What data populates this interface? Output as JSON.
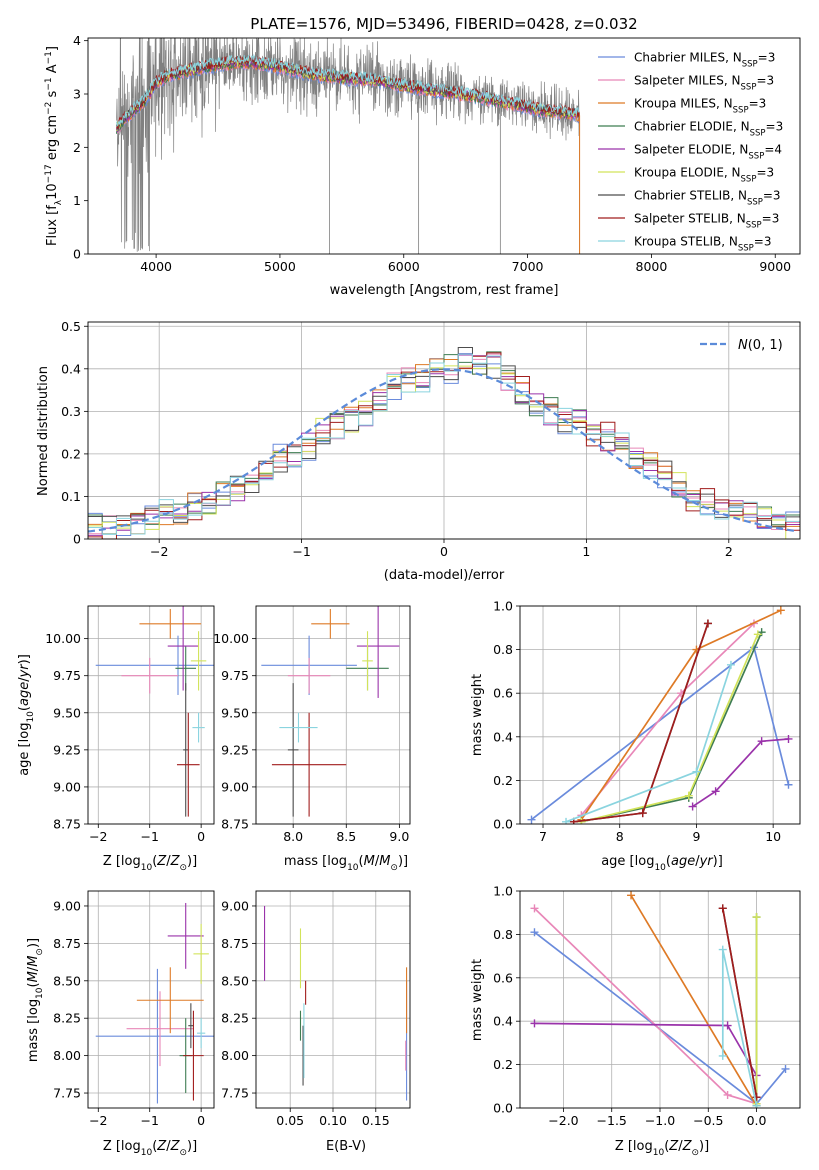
{
  "title": "PLATE=1576, MJD=53496, FIBERID=0428, z=0.032",
  "colors": {
    "spectrum": "#808080",
    "grid": "#b0b0b0",
    "normal_curve": "#5b8bd9"
  },
  "legend": [
    {
      "name": "Chabrier MILES",
      "nssp": "3",
      "color": "#6a8bdc"
    },
    {
      "name": "Salpeter MILES",
      "nssp": "3",
      "color": "#e887b8"
    },
    {
      "name": "Kroupa MILES",
      "nssp": "3",
      "color": "#de7a26"
    },
    {
      "name": "Chabrier ELODIE",
      "nssp": "3",
      "color": "#3f7d52"
    },
    {
      "name": "Salpeter ELODIE",
      "nssp": "4",
      "color": "#9a33aa"
    },
    {
      "name": "Kroupa ELODIE",
      "nssp": "3",
      "color": "#d2e35a"
    },
    {
      "name": "Chabrier STELIB",
      "nssp": "3",
      "color": "#4d4d4d"
    },
    {
      "name": "Salpeter STELIB",
      "nssp": "3",
      "color": "#a11d1d"
    },
    {
      "name": "Kroupa STELIB",
      "nssp": "3",
      "color": "#8ad4df"
    }
  ],
  "chart_data": [
    {
      "id": "spectrum",
      "type": "line",
      "xlabel": "wavelength [Angstrom, rest frame]",
      "ylabel": "Flux [f_λ10^-17 erg cm^-2 s^-1 A^-1]",
      "xlim": [
        3450,
        9200
      ],
      "ylim": [
        0,
        4.05
      ],
      "xticks": [
        4000,
        5000,
        6000,
        7000,
        8000,
        9000
      ],
      "yticks": [
        0,
        1,
        2,
        3,
        4
      ],
      "grid": false,
      "legend_position": "top-right",
      "data_range": [
        3680,
        7420
      ],
      "continuum": {
        "x": [
          3680,
          3750,
          3900,
          4000,
          4100,
          4300,
          4500,
          4700,
          4900,
          5100,
          5300,
          5500,
          5800,
          6000,
          6300,
          6600,
          6900,
          7100,
          7300,
          7420
        ],
        "y": [
          2.35,
          2.55,
          2.85,
          3.2,
          3.35,
          3.45,
          3.55,
          3.6,
          3.55,
          3.45,
          3.35,
          3.3,
          3.25,
          3.15,
          3.05,
          2.95,
          2.8,
          2.7,
          2.65,
          2.6
        ]
      }
    },
    {
      "id": "residuals",
      "type": "histogram",
      "xlabel": "(data-model)/error",
      "ylabel": "Normed distribution",
      "xlim": [
        -2.5,
        2.5
      ],
      "ylim": [
        0,
        0.51
      ],
      "xticks": [
        -2,
        -1,
        0,
        1,
        2
      ],
      "yticks": [
        0.0,
        0.1,
        0.2,
        0.3,
        0.4,
        0.5
      ],
      "grid": true,
      "legend_position": "top-right",
      "curve_label": "N(0,1)",
      "bins": {
        "start": -2.5,
        "width": 0.1
      },
      "template": [
        0.03,
        0.02,
        0.03,
        0.04,
        0.05,
        0.06,
        0.07,
        0.08,
        0.085,
        0.1,
        0.12,
        0.14,
        0.17,
        0.19,
        0.2,
        0.22,
        0.25,
        0.27,
        0.28,
        0.3,
        0.33,
        0.36,
        0.37,
        0.38,
        0.4,
        0.4,
        0.43,
        0.42,
        0.41,
        0.38,
        0.35,
        0.32,
        0.3,
        0.28,
        0.27,
        0.25,
        0.24,
        0.22,
        0.19,
        0.17,
        0.15,
        0.13,
        0.1,
        0.09,
        0.08,
        0.07,
        0.06,
        0.05,
        0.04,
        0.03
      ]
    },
    {
      "id": "age_vs_Z",
      "type": "scatter",
      "xlabel": "Z [log10(Z/Z⊙)]",
      "ylabel": "age  [log10(age/yr)]",
      "xlim": [
        -2.2,
        0.25
      ],
      "ylim": [
        8.75,
        10.22
      ],
      "xticks": [
        -2,
        -1,
        0
      ],
      "yticks": [
        8.75,
        9.0,
        9.25,
        9.5,
        9.75,
        10.0
      ],
      "grid": true,
      "points": [
        {
          "s": 0,
          "x": -0.45,
          "y": 9.82,
          "xe": 1.6,
          "ye": 0.2
        },
        {
          "s": 1,
          "x": -1.0,
          "y": 9.75,
          "xe": 0.55,
          "ye": 0.12
        },
        {
          "s": 2,
          "x": -0.6,
          "y": 10.1,
          "xe": 0.6,
          "ye": 0.1
        },
        {
          "s": 3,
          "x": -0.3,
          "y": 9.8,
          "xe": 0.2,
          "ye": 0.15
        },
        {
          "s": 4,
          "x": -0.35,
          "y": 9.95,
          "xe": 0.3,
          "ye": 0.3
        },
        {
          "s": 5,
          "x": -0.05,
          "y": 9.85,
          "xe": 0.15,
          "ye": 0.2
        },
        {
          "s": 6,
          "x": -0.3,
          "y": 9.25,
          "xe": 0.05,
          "ye": 0.45
        },
        {
          "s": 7,
          "x": -0.25,
          "y": 9.15,
          "xe": 0.22,
          "ye": 0.35
        },
        {
          "s": 8,
          "x": -0.05,
          "y": 9.4,
          "xe": 0.12,
          "ye": 0.1
        }
      ]
    },
    {
      "id": "age_vs_mass",
      "type": "scatter",
      "xlabel": "mass [log10(M/M⊙)]",
      "ylabel": "",
      "xlim": [
        7.65,
        9.1
      ],
      "ylim": [
        8.75,
        10.22
      ],
      "xticks": [
        8.0,
        8.5,
        9.0
      ],
      "yticks": [
        8.75,
        9.0,
        9.25,
        9.5,
        9.75,
        10.0
      ],
      "grid": true,
      "points": [
        {
          "s": 0,
          "x": 8.15,
          "y": 9.82,
          "xe": 0.45,
          "ye": 0.2
        },
        {
          "s": 1,
          "x": 8.15,
          "y": 9.75,
          "xe": 0.2,
          "ye": 0.12
        },
        {
          "s": 2,
          "x": 8.35,
          "y": 10.1,
          "xe": 0.18,
          "ye": 0.1
        },
        {
          "s": 3,
          "x": 8.7,
          "y": 9.8,
          "xe": 0.2,
          "ye": 0.15
        },
        {
          "s": 4,
          "x": 8.8,
          "y": 9.95,
          "xe": 0.2,
          "ye": 0.35
        },
        {
          "s": 5,
          "x": 8.7,
          "y": 9.85,
          "xe": 0.05,
          "ye": 0.2
        },
        {
          "s": 6,
          "x": 8.0,
          "y": 9.25,
          "xe": 0.05,
          "ye": 0.45
        },
        {
          "s": 7,
          "x": 8.15,
          "y": 9.15,
          "xe": 0.35,
          "ye": 0.35
        },
        {
          "s": 8,
          "x": 8.05,
          "y": 9.4,
          "xe": 0.18,
          "ye": 0.1
        }
      ]
    },
    {
      "id": "mass_weight_vs_age",
      "type": "line",
      "xlabel": "age  [log10(age/yr)]",
      "ylabel": "mass weight",
      "xlim": [
        6.7,
        10.35
      ],
      "ylim": [
        0,
        1.0
      ],
      "xticks": [
        7,
        8,
        9,
        10
      ],
      "yticks": [
        0.0,
        0.2,
        0.4,
        0.6,
        0.8,
        1.0
      ],
      "grid": true,
      "series": [
        {
          "s": 0,
          "x": [
            6.85,
            9.75,
            10.2
          ],
          "y": [
            0.02,
            0.81,
            0.18
          ]
        },
        {
          "s": 1,
          "x": [
            7.5,
            8.8,
            9.75
          ],
          "y": [
            0.04,
            0.6,
            0.92
          ]
        },
        {
          "s": 2,
          "x": [
            7.5,
            9.0,
            10.1
          ],
          "y": [
            0.02,
            0.8,
            0.98
          ]
        },
        {
          "s": 3,
          "x": [
            7.5,
            8.9,
            9.85
          ],
          "y": [
            0.01,
            0.12,
            0.88
          ]
        },
        {
          "s": 4,
          "x": [
            8.95,
            9.25,
            9.85,
            10.2
          ],
          "y": [
            0.08,
            0.15,
            0.38,
            0.39
          ]
        },
        {
          "s": 5,
          "x": [
            7.5,
            8.9,
            9.8
          ],
          "y": [
            0.01,
            0.13,
            0.87
          ]
        },
        {
          "s": 6,
          "x": [
            7.4,
            8.3,
            9.15
          ],
          "y": [
            0.01,
            0.05,
            0.92
          ]
        },
        {
          "s": 7,
          "x": [
            7.4,
            8.3,
            9.15
          ],
          "y": [
            0.01,
            0.05,
            0.92
          ]
        },
        {
          "s": 8,
          "x": [
            7.3,
            9.0,
            9.45
          ],
          "y": [
            0.01,
            0.24,
            0.73
          ]
        }
      ]
    },
    {
      "id": "mass_vs_Z",
      "type": "scatter",
      "xlabel": "Z [log10(Z/Z⊙)]",
      "ylabel": "mass [log10(M/M⊙)]",
      "xlim": [
        -2.2,
        0.25
      ],
      "ylim": [
        7.65,
        9.1
      ],
      "xticks": [
        -2,
        -1,
        0
      ],
      "yticks": [
        7.75,
        8.0,
        8.25,
        8.5,
        8.75,
        9.0
      ],
      "grid": true,
      "points": [
        {
          "s": 0,
          "x": -0.85,
          "y": 8.13,
          "xe": 1.2,
          "ye": 0.45
        },
        {
          "s": 1,
          "x": -0.8,
          "y": 8.18,
          "xe": 0.65,
          "ye": 0.25
        },
        {
          "s": 2,
          "x": -0.6,
          "y": 8.37,
          "xe": 0.65,
          "ye": 0.22
        },
        {
          "s": 3,
          "x": -0.3,
          "y": 8.0,
          "xe": 0.12,
          "ye": 0.25
        },
        {
          "s": 4,
          "x": -0.3,
          "y": 8.8,
          "xe": 0.35,
          "ye": 0.22
        },
        {
          "s": 5,
          "x": 0.0,
          "y": 8.68,
          "xe": 0.15,
          "ye": 0.2
        },
        {
          "s": 6,
          "x": -0.2,
          "y": 8.2,
          "xe": 0.05,
          "ye": 0.15
        },
        {
          "s": 7,
          "x": -0.15,
          "y": 8.0,
          "xe": 0.2,
          "ye": 0.3
        },
        {
          "s": 8,
          "x": 0.0,
          "y": 8.15,
          "xe": 0.08,
          "ye": 0.1
        }
      ]
    },
    {
      "id": "mass_vs_EBV",
      "type": "scatter",
      "xlabel": "E(B-V)",
      "ylabel": "",
      "xlim": [
        0.01,
        0.19
      ],
      "ylim": [
        7.65,
        9.1
      ],
      "xticks": [
        0.05,
        0.1,
        0.15
      ],
      "yticks": [
        7.75,
        8.0,
        8.25,
        8.5,
        8.75,
        9.0
      ],
      "grid": true,
      "points": [
        {
          "s": 0,
          "x": 0.186,
          "y": 8.1,
          "xe": 0,
          "ye": 0.4
        },
        {
          "s": 1,
          "x": 0.185,
          "y": 8.0,
          "xe": 0,
          "ye": 0.1
        },
        {
          "s": 2,
          "x": 0.186,
          "y": 8.37,
          "xe": 0,
          "ye": 0.22
        },
        {
          "s": 3,
          "x": 0.062,
          "y": 8.2,
          "xe": 0,
          "ye": 0.1
        },
        {
          "s": 4,
          "x": 0.02,
          "y": 8.75,
          "xe": 0,
          "ye": 0.25
        },
        {
          "s": 5,
          "x": 0.062,
          "y": 8.65,
          "xe": 0,
          "ye": 0.2
        },
        {
          "s": 6,
          "x": 0.065,
          "y": 8.0,
          "xe": 0,
          "ye": 0.2
        },
        {
          "s": 7,
          "x": 0.068,
          "y": 8.42,
          "xe": 0,
          "ye": 0.08
        },
        {
          "s": 8,
          "x": 0.066,
          "y": 8.1,
          "xe": 0,
          "ye": 0.25
        }
      ]
    },
    {
      "id": "mass_weight_vs_Z",
      "type": "line",
      "xlabel": "Z [log10(Z/Z⊙)]",
      "ylabel": "mass weight",
      "xlim": [
        -2.45,
        0.45
      ],
      "ylim": [
        0,
        1.0
      ],
      "xticks": [
        -2.0,
        -1.5,
        -1.0,
        -0.5,
        0.0
      ],
      "yticks": [
        0.0,
        0.2,
        0.4,
        0.6,
        0.8,
        1.0
      ],
      "grid": true,
      "series": [
        {
          "s": 0,
          "x": [
            -2.3,
            0.0,
            0.3
          ],
          "y": [
            0.81,
            0.02,
            0.18
          ]
        },
        {
          "s": 1,
          "x": [
            -2.3,
            -0.3,
            0.0
          ],
          "y": [
            0.92,
            0.06,
            0.02
          ]
        },
        {
          "s": 2,
          "x": [
            -1.3,
            0.0
          ],
          "y": [
            0.98,
            0.01
          ]
        },
        {
          "s": 3,
          "x": [
            0.0,
            0.0
          ],
          "y": [
            0.01,
            0.88
          ]
        },
        {
          "s": 4,
          "x": [
            -2.3,
            -0.3,
            0.0
          ],
          "y": [
            0.39,
            0.38,
            0.15
          ]
        },
        {
          "s": 5,
          "x": [
            0.0,
            0.0
          ],
          "y": [
            0.02,
            0.88
          ]
        },
        {
          "s": 6,
          "x": [
            -0.35,
            0.0
          ],
          "y": [
            0.92,
            0.05
          ]
        },
        {
          "s": 7,
          "x": [
            -0.35,
            0.0
          ],
          "y": [
            0.92,
            0.05
          ]
        },
        {
          "s": 8,
          "x": [
            -0.35,
            -0.35,
            0.0
          ],
          "y": [
            0.24,
            0.73,
            0.01
          ]
        }
      ]
    }
  ]
}
